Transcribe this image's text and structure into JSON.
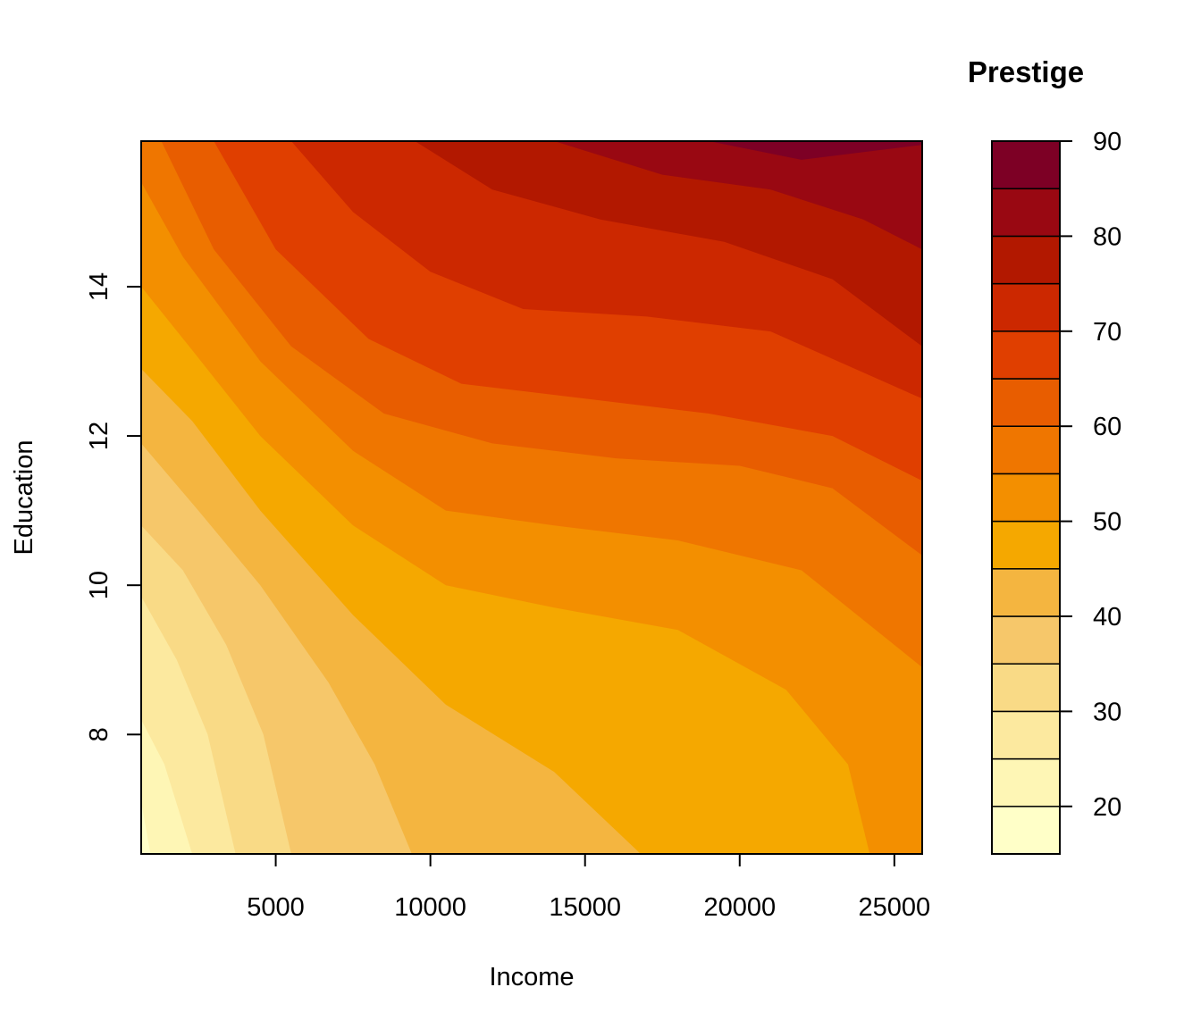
{
  "chart_data": {
    "type": "heatmap",
    "subtype": "filled-contour",
    "xlabel": "Income",
    "ylabel": "Education",
    "legend_title": "Prestige",
    "xlim": [
      650,
      25900
    ],
    "ylim": [
      6.4,
      15.95
    ],
    "x_ticks": [
      5000,
      10000,
      15000,
      20000,
      25000
    ],
    "y_ticks": [
      8,
      10,
      12,
      14
    ],
    "legend_ticks": [
      20,
      30,
      40,
      50,
      60,
      70,
      80,
      90
    ],
    "levels": [
      15,
      20,
      25,
      30,
      35,
      40,
      45,
      50,
      55,
      60,
      65,
      70,
      75,
      80,
      85,
      90
    ],
    "level_colors": [
      "#FFFFC8",
      "#FEF6B5",
      "#FCE99F",
      "#F9DA86",
      "#F6C76A",
      "#F4B540",
      "#F5A800",
      "#F38F00",
      "#EF7600",
      "#E85D00",
      "#E03F00",
      "#CC2800",
      "#B21800",
      "#990812",
      "#7D0025"
    ],
    "contours": [
      {
        "level": 20,
        "points": [
          [
            650,
            7.1
          ],
          [
            950,
            6.4
          ]
        ]
      },
      {
        "level": 25,
        "points": [
          [
            650,
            8.2
          ],
          [
            1400,
            7.6
          ],
          [
            2300,
            6.4
          ]
        ]
      },
      {
        "level": 30,
        "points": [
          [
            650,
            9.85
          ],
          [
            1800,
            9
          ],
          [
            2800,
            8
          ],
          [
            3700,
            6.4
          ]
        ]
      },
      {
        "level": 35,
        "points": [
          [
            650,
            10.8
          ],
          [
            2000,
            10.2
          ],
          [
            3400,
            9.2
          ],
          [
            4600,
            8
          ],
          [
            5500,
            6.4
          ]
        ]
      },
      {
        "level": 40,
        "points": [
          [
            650,
            11.9
          ],
          [
            2500,
            11
          ],
          [
            4500,
            10
          ],
          [
            6700,
            8.7
          ],
          [
            8200,
            7.6
          ],
          [
            9400,
            6.4
          ]
        ]
      },
      {
        "level": 45,
        "points": [
          [
            650,
            12.9
          ],
          [
            2300,
            12.2
          ],
          [
            4500,
            11
          ],
          [
            7500,
            9.6
          ],
          [
            10500,
            8.4
          ],
          [
            14000,
            7.5
          ],
          [
            16800,
            6.4
          ]
        ]
      },
      {
        "level": 50,
        "points": [
          [
            650,
            14
          ],
          [
            2200,
            13.2
          ],
          [
            4500,
            12
          ],
          [
            7500,
            10.8
          ],
          [
            10500,
            10
          ],
          [
            14000,
            9.7
          ],
          [
            18000,
            9.4
          ],
          [
            21500,
            8.6
          ],
          [
            23500,
            7.6
          ],
          [
            24200,
            6.4
          ]
        ]
      },
      {
        "level": 55,
        "points": [
          [
            650,
            15.4
          ],
          [
            2000,
            14.4
          ],
          [
            4500,
            13
          ],
          [
            7500,
            11.8
          ],
          [
            10500,
            11
          ],
          [
            14000,
            10.8
          ],
          [
            18000,
            10.6
          ],
          [
            22000,
            10.2
          ],
          [
            25900,
            8.9
          ]
        ]
      },
      {
        "level": 60,
        "points": [
          [
            1300,
            15.95
          ],
          [
            3000,
            14.5
          ],
          [
            5500,
            13.2
          ],
          [
            8500,
            12.3
          ],
          [
            12000,
            11.9
          ],
          [
            16000,
            11.7
          ],
          [
            20000,
            11.6
          ],
          [
            23000,
            11.3
          ],
          [
            25900,
            10.4
          ]
        ]
      },
      {
        "level": 65,
        "points": [
          [
            3000,
            15.95
          ],
          [
            5000,
            14.5
          ],
          [
            8000,
            13.3
          ],
          [
            11000,
            12.7
          ],
          [
            15000,
            12.5
          ],
          [
            19000,
            12.3
          ],
          [
            23000,
            12
          ],
          [
            25900,
            11.4
          ]
        ]
      },
      {
        "level": 70,
        "points": [
          [
            5500,
            15.95
          ],
          [
            7500,
            15
          ],
          [
            10000,
            14.2
          ],
          [
            13000,
            13.7
          ],
          [
            17000,
            13.6
          ],
          [
            21000,
            13.4
          ],
          [
            25900,
            12.5
          ]
        ]
      },
      {
        "level": 75,
        "points": [
          [
            9500,
            15.95
          ],
          [
            12000,
            15.3
          ],
          [
            15500,
            14.9
          ],
          [
            19500,
            14.6
          ],
          [
            23000,
            14.1
          ],
          [
            25900,
            13.2
          ]
        ]
      },
      {
        "level": 80,
        "points": [
          [
            14000,
            15.95
          ],
          [
            17500,
            15.5
          ],
          [
            21000,
            15.3
          ],
          [
            24000,
            14.9
          ],
          [
            25900,
            14.5
          ]
        ]
      },
      {
        "level": 85,
        "points": [
          [
            19000,
            15.95
          ],
          [
            22000,
            15.7
          ],
          [
            25900,
            15.9
          ]
        ]
      }
    ]
  }
}
